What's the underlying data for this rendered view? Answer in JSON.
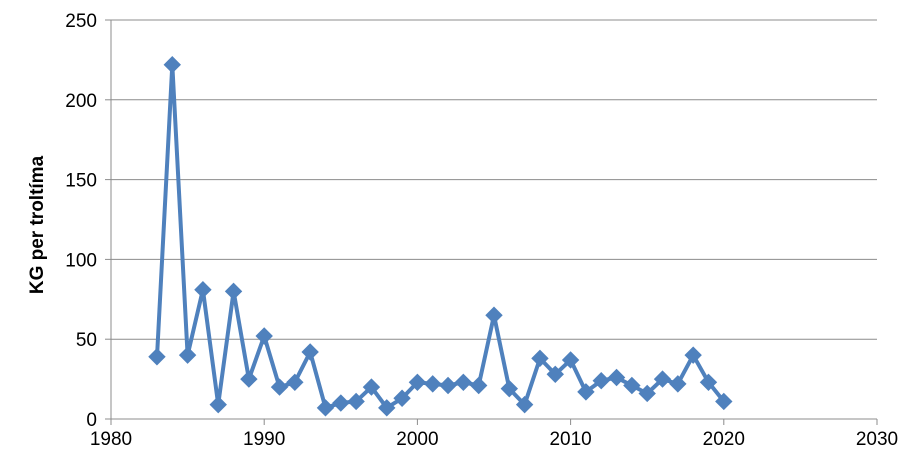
{
  "chart_data": {
    "type": "line",
    "ylabel": "KG per troltíma",
    "xlim": [
      1980,
      2030
    ],
    "ylim": [
      0,
      250
    ],
    "x_ticks": [
      1980,
      1990,
      2000,
      2010,
      2020,
      2030
    ],
    "y_ticks": [
      0,
      50,
      100,
      150,
      200,
      250
    ],
    "grid": "horizontal",
    "marker": "diamond",
    "series": [
      {
        "color": "#4f81bd",
        "x": [
          1983,
          1984,
          1985,
          1986,
          1987,
          1988,
          1989,
          1990,
          1991,
          1992,
          1993,
          1994,
          1995,
          1996,
          1997,
          1998,
          1999,
          2000,
          2001,
          2002,
          2003,
          2004,
          2005,
          2006,
          2007,
          2008,
          2009,
          2010,
          2011,
          2012,
          2013,
          2014,
          2015,
          2016,
          2017,
          2018,
          2019,
          2020
        ],
        "y": [
          39,
          222,
          40,
          81,
          9,
          80,
          25,
          52,
          20,
          23,
          42,
          7,
          10,
          11,
          20,
          7,
          13,
          23,
          22,
          21,
          23,
          21,
          65,
          19,
          9,
          38,
          28,
          37,
          17,
          24,
          26,
          21,
          16,
          25,
          22,
          40,
          23,
          11
        ]
      }
    ]
  }
}
